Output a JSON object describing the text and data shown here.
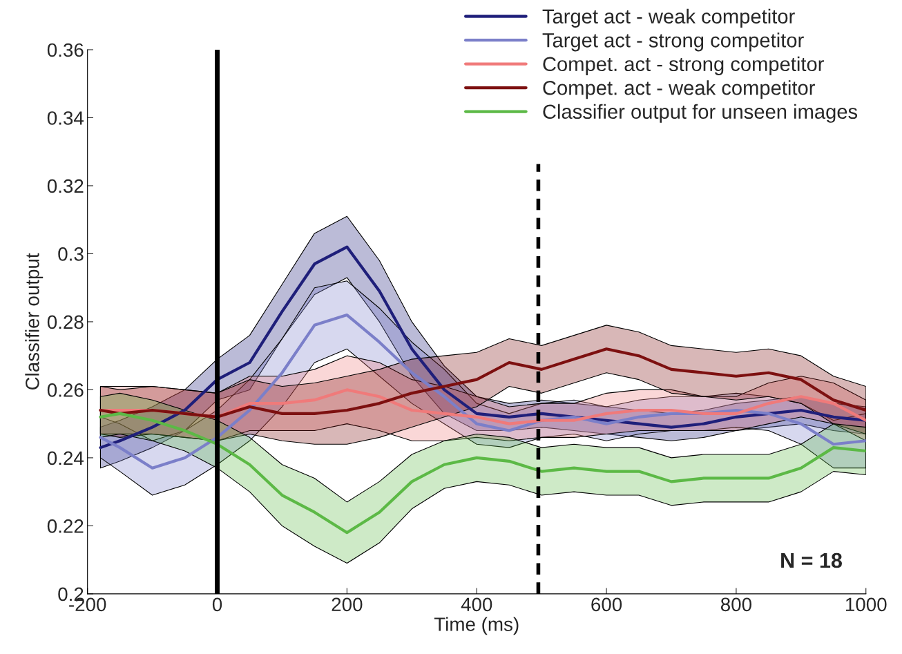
{
  "chart_data": {
    "type": "line",
    "xlabel": "Time (ms)",
    "ylabel": "Classifier output",
    "x": [
      -180,
      -150,
      -100,
      -50,
      0,
      50,
      100,
      150,
      200,
      250,
      300,
      350,
      400,
      450,
      500,
      550,
      600,
      650,
      700,
      750,
      800,
      850,
      900,
      950,
      1000
    ],
    "series": [
      {
        "name": "Target act - weak competitor",
        "color": "#1f1f7a",
        "values": [
          0.243,
          0.245,
          0.249,
          0.254,
          0.263,
          0.268,
          0.283,
          0.297,
          0.302,
          0.289,
          0.272,
          0.26,
          0.253,
          0.252,
          0.253,
          0.252,
          0.251,
          0.25,
          0.249,
          0.25,
          0.252,
          0.253,
          0.254,
          0.252,
          0.251
        ],
        "lower": [
          0.237,
          0.239,
          0.243,
          0.248,
          0.257,
          0.26,
          0.275,
          0.288,
          0.293,
          0.28,
          0.264,
          0.253,
          0.248,
          0.248,
          0.249,
          0.248,
          0.247,
          0.246,
          0.245,
          0.246,
          0.248,
          0.249,
          0.25,
          0.248,
          0.247
        ],
        "upper": [
          0.249,
          0.251,
          0.255,
          0.26,
          0.269,
          0.276,
          0.291,
          0.306,
          0.311,
          0.298,
          0.28,
          0.267,
          0.258,
          0.256,
          0.257,
          0.256,
          0.255,
          0.254,
          0.253,
          0.254,
          0.256,
          0.257,
          0.258,
          0.256,
          0.255
        ]
      },
      {
        "name": "Target act - strong competitor",
        "color": "#7b7fc9",
        "values": [
          0.246,
          0.243,
          0.237,
          0.24,
          0.246,
          0.254,
          0.265,
          0.279,
          0.282,
          0.274,
          0.265,
          0.258,
          0.25,
          0.248,
          0.251,
          0.252,
          0.25,
          0.252,
          0.253,
          0.253,
          0.254,
          0.253,
          0.25,
          0.244,
          0.245
        ],
        "lower": [
          0.24,
          0.236,
          0.229,
          0.232,
          0.238,
          0.245,
          0.255,
          0.268,
          0.272,
          0.264,
          0.256,
          0.25,
          0.244,
          0.243,
          0.246,
          0.247,
          0.245,
          0.247,
          0.248,
          0.248,
          0.249,
          0.248,
          0.244,
          0.237,
          0.237
        ],
        "upper": [
          0.252,
          0.25,
          0.245,
          0.248,
          0.254,
          0.263,
          0.275,
          0.29,
          0.292,
          0.284,
          0.274,
          0.266,
          0.256,
          0.253,
          0.256,
          0.257,
          0.255,
          0.257,
          0.258,
          0.258,
          0.259,
          0.258,
          0.256,
          0.251,
          0.253
        ]
      },
      {
        "name": "Compet. act - strong competitor",
        "color": "#f07a7a",
        "values": [
          0.254,
          0.254,
          0.254,
          0.253,
          0.252,
          0.256,
          0.256,
          0.257,
          0.26,
          0.258,
          0.254,
          0.253,
          0.252,
          0.25,
          0.251,
          0.251,
          0.253,
          0.254,
          0.254,
          0.253,
          0.253,
          0.256,
          0.258,
          0.256,
          0.251
        ],
        "lower": [
          0.247,
          0.247,
          0.247,
          0.246,
          0.245,
          0.248,
          0.248,
          0.248,
          0.25,
          0.248,
          0.245,
          0.245,
          0.246,
          0.245,
          0.246,
          0.246,
          0.247,
          0.248,
          0.248,
          0.248,
          0.248,
          0.25,
          0.252,
          0.25,
          0.245
        ],
        "upper": [
          0.261,
          0.261,
          0.261,
          0.26,
          0.259,
          0.264,
          0.264,
          0.266,
          0.27,
          0.268,
          0.263,
          0.261,
          0.258,
          0.255,
          0.256,
          0.256,
          0.259,
          0.26,
          0.26,
          0.258,
          0.258,
          0.262,
          0.264,
          0.262,
          0.257
        ]
      },
      {
        "name": "Compet. act - weak competitor",
        "color": "#7d1010",
        "values": [
          0.254,
          0.253,
          0.254,
          0.253,
          0.252,
          0.255,
          0.253,
          0.253,
          0.254,
          0.256,
          0.259,
          0.261,
          0.263,
          0.268,
          0.266,
          0.269,
          0.272,
          0.27,
          0.266,
          0.265,
          0.264,
          0.265,
          0.263,
          0.257,
          0.254
        ],
        "lower": [
          0.247,
          0.246,
          0.247,
          0.246,
          0.245,
          0.247,
          0.245,
          0.244,
          0.244,
          0.246,
          0.249,
          0.252,
          0.255,
          0.261,
          0.259,
          0.262,
          0.265,
          0.263,
          0.259,
          0.258,
          0.257,
          0.258,
          0.256,
          0.25,
          0.247
        ],
        "upper": [
          0.261,
          0.26,
          0.261,
          0.26,
          0.259,
          0.263,
          0.261,
          0.262,
          0.264,
          0.266,
          0.269,
          0.27,
          0.271,
          0.275,
          0.273,
          0.276,
          0.279,
          0.277,
          0.273,
          0.272,
          0.271,
          0.272,
          0.27,
          0.264,
          0.261
        ]
      },
      {
        "name": "Classifier output for unseen images",
        "color": "#5cb946",
        "values": [
          0.252,
          0.253,
          0.251,
          0.248,
          0.244,
          0.238,
          0.229,
          0.224,
          0.218,
          0.224,
          0.233,
          0.238,
          0.24,
          0.239,
          0.236,
          0.237,
          0.236,
          0.236,
          0.233,
          0.234,
          0.234,
          0.234,
          0.237,
          0.243,
          0.242
        ],
        "lower": [
          0.246,
          0.247,
          0.245,
          0.242,
          0.237,
          0.23,
          0.22,
          0.214,
          0.209,
          0.215,
          0.225,
          0.231,
          0.233,
          0.232,
          0.229,
          0.23,
          0.229,
          0.229,
          0.226,
          0.227,
          0.227,
          0.227,
          0.23,
          0.236,
          0.235
        ],
        "upper": [
          0.258,
          0.259,
          0.257,
          0.254,
          0.251,
          0.246,
          0.238,
          0.234,
          0.227,
          0.233,
          0.241,
          0.245,
          0.247,
          0.246,
          0.243,
          0.244,
          0.243,
          0.243,
          0.24,
          0.241,
          0.241,
          0.241,
          0.244,
          0.25,
          0.249
        ]
      }
    ],
    "xlim": [
      -200,
      1000
    ],
    "xticks": [
      -200,
      0,
      200,
      400,
      600,
      800,
      1000
    ],
    "ylim": [
      0.2,
      0.36
    ],
    "yticks": [
      0.2,
      0.22,
      0.24,
      0.26,
      0.28,
      0.3,
      0.32,
      0.34,
      0.36
    ],
    "ref_lines": [
      {
        "axis": "x",
        "value": 0,
        "color": "#000000",
        "line_style": "solid"
      },
      {
        "axis": "x",
        "value": 495,
        "color": "#000000",
        "line_style": "dashed"
      }
    ],
    "annotations": [
      "N = 18"
    ],
    "grid": false,
    "legend": "top right",
    "line_style": "solid",
    "marker": "none"
  }
}
